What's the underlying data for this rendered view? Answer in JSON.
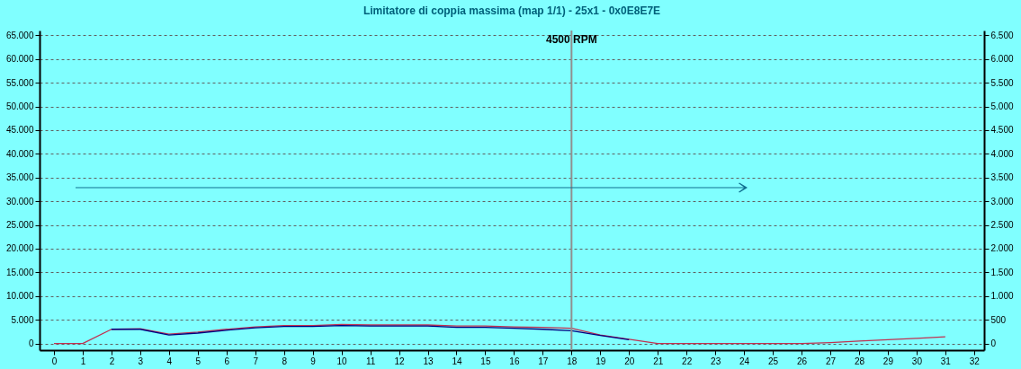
{
  "chart_data": {
    "type": "line",
    "title": "Limitatore di coppia massima (map 1/1) - 25x1 - 0x0E8E7E",
    "x": [
      0,
      1,
      2,
      3,
      4,
      5,
      6,
      7,
      8,
      9,
      10,
      11,
      12,
      13,
      14,
      15,
      16,
      17,
      18,
      19,
      20,
      21,
      22,
      23,
      24,
      25,
      26,
      27,
      28,
      29,
      30,
      31
    ],
    "series": [
      {
        "color": "#c03050",
        "values": [
          0,
          0,
          3000,
          3100,
          2000,
          2400,
          3000,
          3500,
          3800,
          3800,
          4000,
          3900,
          3900,
          3900,
          3700,
          3700,
          3500,
          3400,
          3200,
          1800,
          900,
          0,
          0,
          0,
          0,
          0,
          0,
          200,
          500,
          800,
          1100,
          1400
        ]
      },
      {
        "color": "#000080",
        "values": [
          null,
          null,
          3000,
          3000,
          1800,
          2200,
          2800,
          3300,
          3600,
          3600,
          3800,
          3700,
          3700,
          3700,
          3400,
          3400,
          3200,
          3000,
          2700,
          1700,
          800,
          null,
          null,
          null,
          null,
          null,
          null,
          null,
          null,
          null,
          null,
          null
        ]
      }
    ],
    "xlim": [
      -0.5,
      32.35
    ],
    "xticks": [
      0,
      1,
      2,
      3,
      4,
      5,
      6,
      7,
      8,
      9,
      10,
      11,
      12,
      13,
      14,
      15,
      16,
      17,
      18,
      19,
      20,
      21,
      22,
      23,
      24,
      25,
      26,
      27,
      28,
      29,
      30,
      31,
      32
    ],
    "ylim": [
      -1400,
      66000
    ],
    "yticks": [
      0,
      {
        "value": 5000,
        "label": "5.000"
      },
      {
        "value": 10000,
        "label": "10.000"
      },
      {
        "value": 15000,
        "label": "15.000"
      },
      {
        "value": 20000,
        "label": "20.000"
      },
      {
        "value": 25000,
        "label": "25.000"
      },
      {
        "value": 30000,
        "label": "30.000"
      },
      {
        "value": 35000,
        "label": "35.000"
      },
      {
        "value": 40000,
        "label": "40.000"
      },
      {
        "value": 45000,
        "label": "45.000"
      },
      {
        "value": 50000,
        "label": "50.000"
      },
      {
        "value": 55000,
        "label": "55.000"
      },
      {
        "value": 60000,
        "label": "60.000"
      },
      {
        "value": 65000,
        "label": "65.000"
      }
    ],
    "y2lim": [
      -140,
      6600
    ],
    "y2ticks": [
      0,
      500,
      {
        "value": 1000,
        "label": "1.000"
      },
      {
        "value": 1500,
        "label": "1.500"
      },
      {
        "value": 2000,
        "label": "2.000"
      },
      {
        "value": 2500,
        "label": "2.500"
      },
      {
        "value": 3000,
        "label": "3.000"
      },
      {
        "value": 3500,
        "label": "3.500"
      },
      {
        "value": 4000,
        "label": "4.000"
      },
      {
        "value": 4500,
        "label": "4.500"
      },
      {
        "value": 5000,
        "label": "5.000"
      },
      {
        "value": 5500,
        "label": "5.500"
      },
      {
        "value": 6000,
        "label": "6.000"
      },
      {
        "value": 6500,
        "label": "6.500"
      }
    ],
    "ref_lines": [
      {
        "axis": "x",
        "value": 18,
        "label": "4500 RPM",
        "color": "#909090"
      }
    ],
    "grid": "y",
    "marker": "none",
    "line_style": "solid"
  }
}
